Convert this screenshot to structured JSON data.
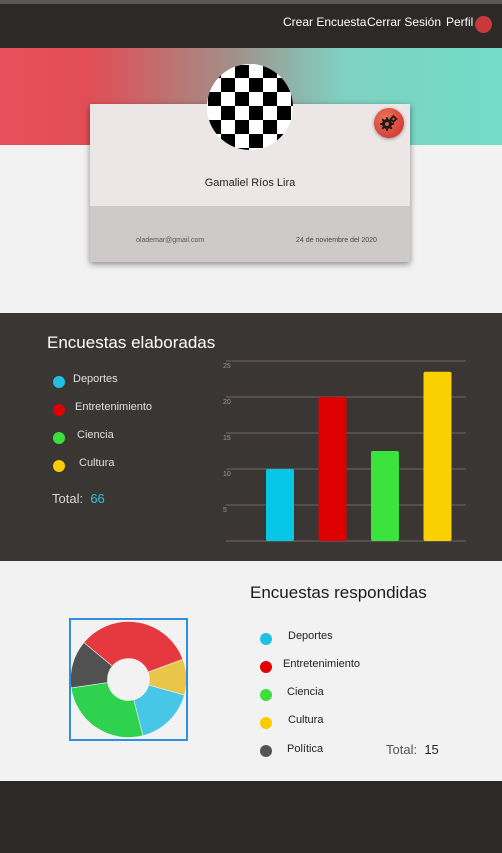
{
  "nav": {
    "create_survey": "Crear Encuesta",
    "logout": "Cerrar Sesión",
    "profile": "Perfil"
  },
  "profile": {
    "name": "Gamaliel Ríos Lira",
    "email": "olademar@gmail.com",
    "date": "24 de noviembre del 2020",
    "settings_icon": "gears-icon"
  },
  "elaboradas": {
    "title": "Encuestas elaboradas",
    "legend": [
      {
        "label": "Deportes",
        "color": "#1ec1e3"
      },
      {
        "label": "Entretenimiento",
        "color": "#e00000"
      },
      {
        "label": "Ciencia",
        "color": "#3dde3d"
      },
      {
        "label": "Cultura",
        "color": "#f8cc00"
      }
    ],
    "total_label": "Total:",
    "total_value": "66"
  },
  "respondidas": {
    "title": "Encuestas respondidas",
    "legend": [
      {
        "label": "Deportes",
        "color": "#1ec1e3"
      },
      {
        "label": "Entretenimiento",
        "color": "#e00000"
      },
      {
        "label": "Ciencia",
        "color": "#3dde3d"
      },
      {
        "label": "Cultura",
        "color": "#f8cc00"
      },
      {
        "label": "Política",
        "color": "#555555"
      }
    ],
    "total_label": "Total:",
    "total_value": "15"
  },
  "chart_data": [
    {
      "type": "bar",
      "categories": [
        "Deportes",
        "Entretenimiento",
        "Ciencia",
        "Cultura"
      ],
      "values": [
        10,
        20,
        12.5,
        23.5
      ],
      "colors": [
        "#06c7e6",
        "#de0000",
        "#3de33d",
        "#fbd000"
      ],
      "yticks": [
        "5",
        "10",
        "15",
        "20",
        "25"
      ],
      "ylim": [
        0,
        25
      ],
      "grid": true
    },
    {
      "type": "pie",
      "donut": true,
      "labels": [
        "Entretenimiento",
        "Cultura",
        "Deportes",
        "Ciencia",
        "Política"
      ],
      "values": [
        5,
        1.5,
        2.5,
        4,
        2
      ],
      "colors": [
        "#e5383f",
        "#e9c54a",
        "#48c6e8",
        "#2ed24f",
        "#515151"
      ]
    }
  ]
}
